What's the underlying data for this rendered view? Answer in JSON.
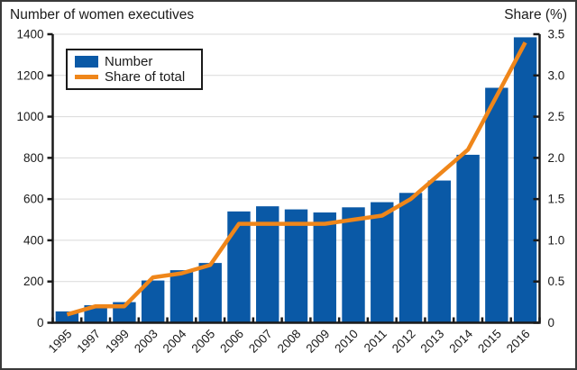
{
  "figure": {
    "title_left": "Number of women executives",
    "title_right": "Share (%)"
  },
  "legend": {
    "position": "upper-left",
    "items": [
      {
        "label": "Number",
        "swatch": "bar-swatch",
        "color": "#0a59a6"
      },
      {
        "label": "Share of total",
        "swatch": "line-swatch",
        "color": "#ef861a"
      }
    ]
  },
  "chart_data": {
    "type": "bar",
    "subtype": "bar-plus-line-dual-axis",
    "categories": [
      "1995",
      "1997",
      "1999",
      "2003",
      "2004",
      "2005",
      "2006",
      "2007",
      "2008",
      "2009",
      "2010",
      "2011",
      "2012",
      "2013",
      "2014",
      "2015",
      "2016"
    ],
    "series": [
      {
        "name": "Number",
        "type": "bar",
        "axis": "left",
        "color": "#0a59a6",
        "values": [
          55,
          85,
          100,
          205,
          255,
          290,
          540,
          565,
          550,
          535,
          560,
          585,
          630,
          690,
          815,
          1140,
          1385
        ]
      },
      {
        "name": "Share of total",
        "type": "line",
        "axis": "right",
        "color": "#ef861a",
        "values": [
          0.1,
          0.2,
          0.2,
          0.55,
          0.6,
          0.7,
          1.2,
          1.2,
          1.2,
          1.2,
          1.25,
          1.3,
          1.5,
          1.8,
          2.1,
          2.75,
          3.4
        ]
      }
    ],
    "left_axis": {
      "title": "Number of women executives",
      "min": 0,
      "max": 1400,
      "tick_step": 200,
      "ticks": [
        "0",
        "200",
        "400",
        "600",
        "800",
        "1000",
        "1200",
        "1400"
      ]
    },
    "right_axis": {
      "title": "Share (%)",
      "min": 0,
      "max": 3.5,
      "tick_step": 0.5,
      "ticks": [
        "0",
        "0.5",
        "1.0",
        "1.5",
        "2.0",
        "2.5",
        "3.0",
        "3.5"
      ]
    },
    "grid": true,
    "grid_color": "#d9d9d9",
    "axis_color": "#1a1a1a",
    "x_label_rotation_deg": 45
  }
}
